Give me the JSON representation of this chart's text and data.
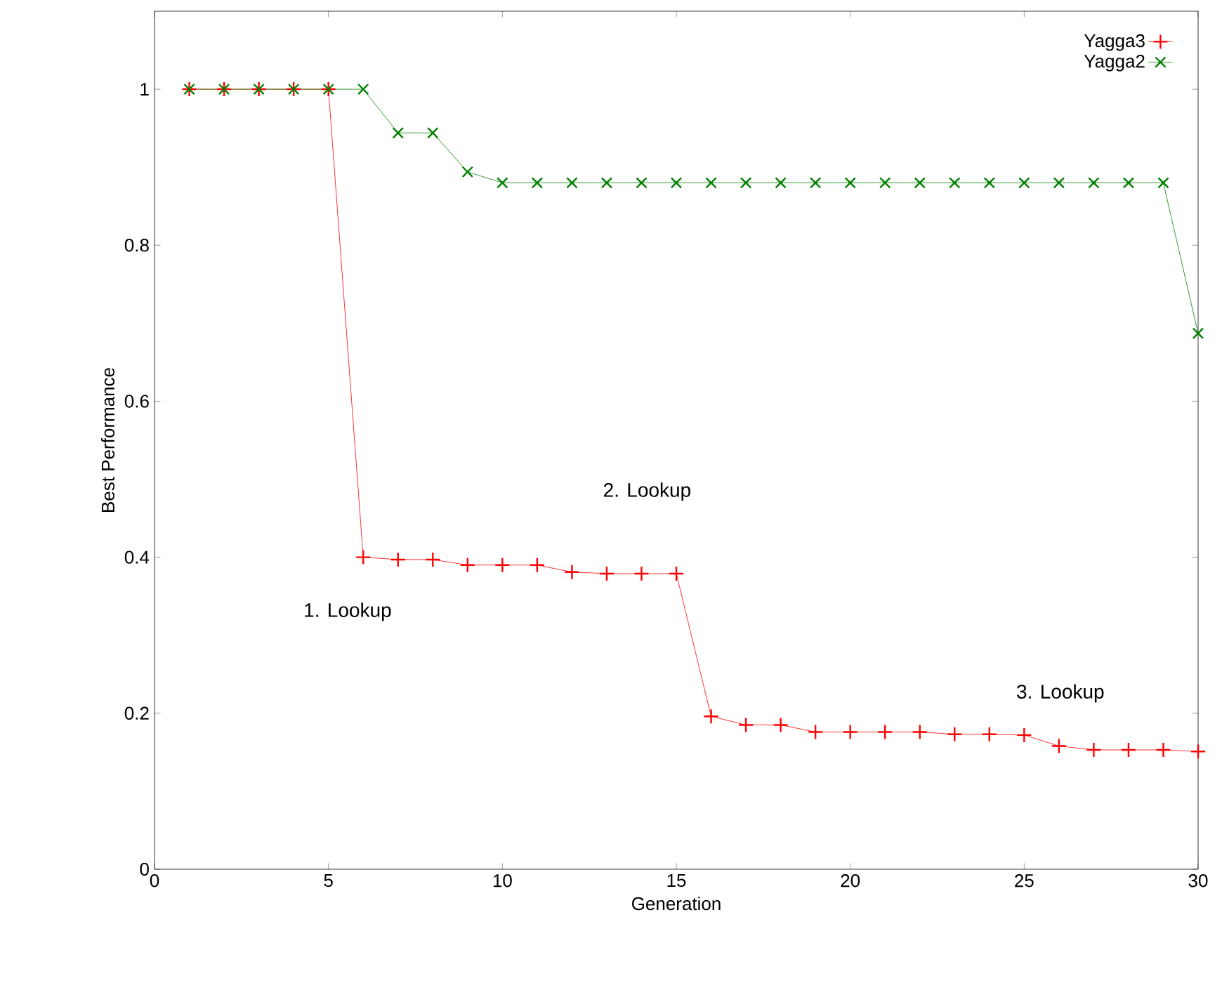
{
  "chart_data": {
    "type": "line",
    "xlabel": "Generation",
    "ylabel": "Best Performance",
    "x": [
      1,
      2,
      3,
      4,
      5,
      6,
      7,
      8,
      9,
      10,
      11,
      12,
      13,
      14,
      15,
      16,
      17,
      18,
      19,
      20,
      21,
      22,
      23,
      24,
      25,
      26,
      27,
      28,
      29,
      30
    ],
    "series": [
      {
        "name": "Yagga3",
        "color": "#ff0000",
        "marker": "plus",
        "values": [
          1,
          1,
          1,
          1,
          1,
          0.4,
          0.397,
          0.397,
          0.39,
          0.39,
          0.39,
          0.381,
          0.379,
          0.379,
          0.379,
          0.196,
          0.185,
          0.185,
          0.176,
          0.176,
          0.176,
          0.176,
          0.173,
          0.173,
          0.172,
          0.158,
          0.153,
          0.153,
          0.153,
          0.151
        ]
      },
      {
        "name": "Yagga2",
        "color": "#008000",
        "marker": "cross",
        "values": [
          1,
          1,
          1,
          1,
          1,
          1,
          0.944,
          0.944,
          0.894,
          0.88,
          0.88,
          0.88,
          0.88,
          0.88,
          0.88,
          0.88,
          0.88,
          0.88,
          0.88,
          0.88,
          0.88,
          0.88,
          0.88,
          0.88,
          0.88,
          0.88,
          0.88,
          0.88,
          0.88,
          0.687
        ]
      }
    ],
    "annotations": [
      "1. Lookup",
      "2. Lookup",
      "3. Lookup"
    ],
    "xlim": [
      0,
      30
    ],
    "ylim": [
      0,
      1.1
    ],
    "xticks": [
      0,
      5,
      10,
      15,
      20,
      25,
      30
    ],
    "yticks": [
      0,
      0.2,
      0.4,
      0.6,
      0.8,
      1
    ],
    "legend": "top right",
    "grid": false,
    "line_style": "solid"
  }
}
